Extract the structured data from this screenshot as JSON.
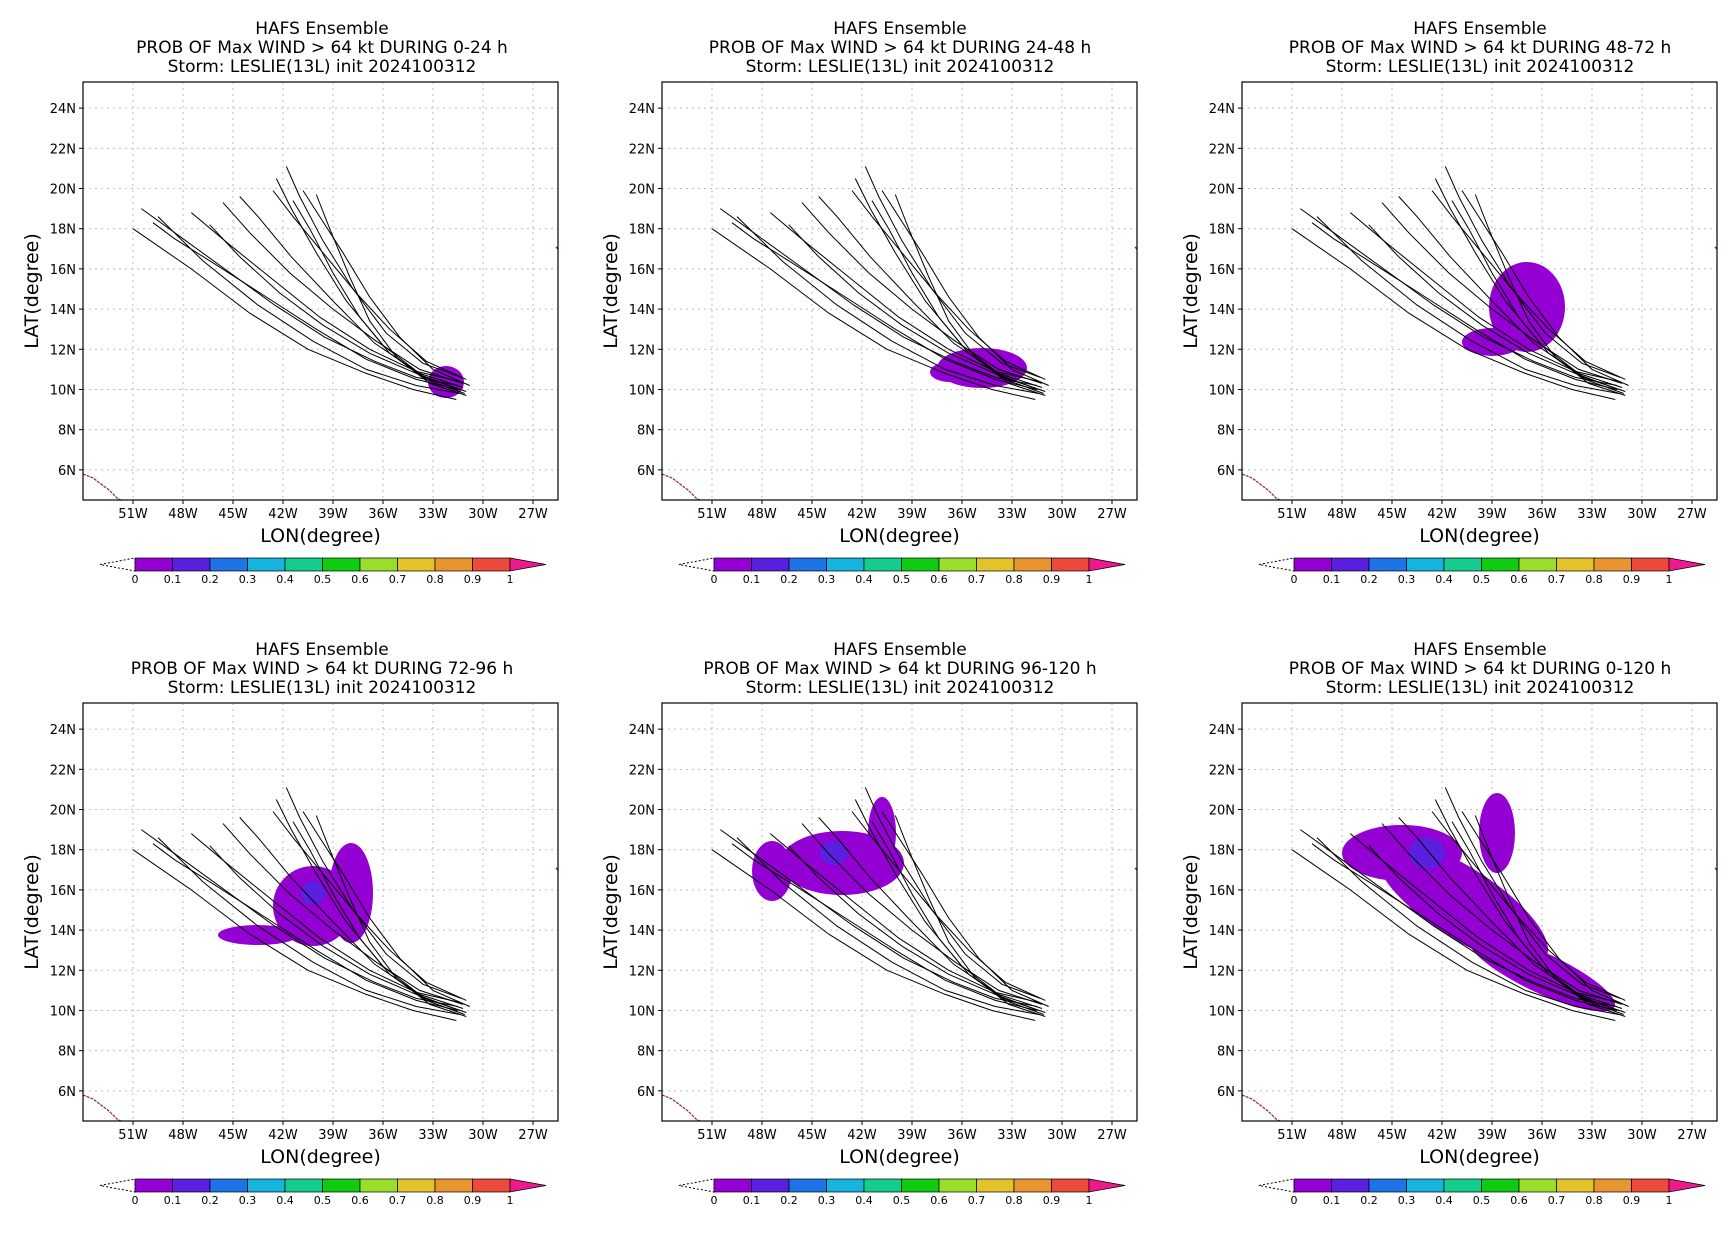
{
  "figure": {
    "title_line1": "HAFS Ensemble",
    "title_line3": "Storm: LESLIE(13L) init 2024100312",
    "xlabel": "LON(degree)",
    "ylabel": "LAT(degree)"
  },
  "axes": {
    "lon_ticks": [
      "51W",
      "48W",
      "45W",
      "42W",
      "39W",
      "36W",
      "33W",
      "30W",
      "27W"
    ],
    "lat_ticks": [
      "24N",
      "22N",
      "20N",
      "18N",
      "16N",
      "14N",
      "12N",
      "10N",
      "8N",
      "6N"
    ]
  },
  "colorbar": {
    "labels": [
      "0",
      "0.1",
      "0.2",
      "0.3",
      "0.4",
      "0.5",
      "0.6",
      "0.7",
      "0.8",
      "0.9",
      "1"
    ],
    "colors": [
      "#9400d3",
      "#5b1fe0",
      "#1e74e6",
      "#16b4dc",
      "#14cc8e",
      "#10cc10",
      "#9ade2c",
      "#e2c42a",
      "#e89430",
      "#ec4a3a",
      "#ec1a8c"
    ]
  },
  "colors": {
    "track": "#000000",
    "coast": "#8b2a2a",
    "grid": "#bdbdbd"
  },
  "panels": [
    {
      "title_line2": "PROB OF Max WIND > 64 kt DURING  0-24 h",
      "chart_data": {
        "type": "map",
        "xlim": [
          -54,
          -25.5
        ],
        "ylim": [
          4.5,
          25.3
        ],
        "probability_regions": [
          {
            "level": "0-0.1",
            "approx_center": [
              -32.5,
              10.5
            ]
          }
        ]
      }
    },
    {
      "title_line2": "PROB OF Max WIND > 64 kt DURING 24-48 h",
      "chart_data": {
        "type": "map",
        "xlim": [
          -54,
          -25.5
        ],
        "ylim": [
          4.5,
          25.3
        ],
        "probability_regions": [
          {
            "level": "0-0.1",
            "approx_center": [
              -35,
              11.3
            ]
          }
        ]
      }
    },
    {
      "title_line2": "PROB OF Max WIND > 64 kt DURING 48-72 h",
      "chart_data": {
        "type": "map",
        "xlim": [
          -54,
          -25.5
        ],
        "ylim": [
          4.5,
          25.3
        ],
        "probability_regions": [
          {
            "level": "0-0.1",
            "approx_center": [
              -38,
              13
            ]
          }
        ]
      }
    },
    {
      "title_line2": "PROB OF Max WIND > 64 kt DURING 72-96 h",
      "chart_data": {
        "type": "map",
        "xlim": [
          -54,
          -25.5
        ],
        "ylim": [
          4.5,
          25.3
        ],
        "probability_regions": [
          {
            "level": "0-0.2",
            "approx_center": [
              -41,
              15
            ]
          }
        ]
      }
    },
    {
      "title_line2": "PROB OF Max WIND > 64 kt DURING 96-120 h",
      "chart_data": {
        "type": "map",
        "xlim": [
          -54,
          -25.5
        ],
        "ylim": [
          4.5,
          25.3
        ],
        "probability_regions": [
          {
            "level": "0-0.2",
            "approx_center": [
              -44,
              17.5
            ]
          }
        ]
      }
    },
    {
      "title_line2": "PROB OF Max WIND > 64 kt DURING 0-120 h",
      "chart_data": {
        "type": "map",
        "xlim": [
          -54,
          -25.5
        ],
        "ylim": [
          4.5,
          25.3
        ],
        "probability_regions": [
          {
            "level": "0-0.2",
            "approx_center": [
              -40,
              15
            ]
          }
        ]
      }
    }
  ],
  "tracks": [
    [
      [
        -31.5,
        10.2
      ],
      [
        -34,
        10.6
      ],
      [
        -36.5,
        11.4
      ],
      [
        -39.5,
        12.6
      ],
      [
        -42.5,
        14.2
      ],
      [
        -45.5,
        16.0
      ],
      [
        -48.5,
        17.8
      ],
      [
        -50.5,
        19.0
      ]
    ],
    [
      [
        -31.5,
        10.0
      ],
      [
        -34,
        10.5
      ],
      [
        -37,
        11.5
      ],
      [
        -40,
        13.0
      ],
      [
        -43,
        14.6
      ],
      [
        -46,
        16.2
      ],
      [
        -48.5,
        17.5
      ],
      [
        -49.8,
        18.3
      ]
    ],
    [
      [
        -31.4,
        10.4
      ],
      [
        -34,
        10.9
      ],
      [
        -36.8,
        12.0
      ],
      [
        -39.8,
        13.6
      ],
      [
        -42.5,
        15.4
      ],
      [
        -45.2,
        17.2
      ],
      [
        -47.5,
        18.8
      ]
    ],
    [
      [
        -31.2,
        10.1
      ],
      [
        -33.8,
        10.8
      ],
      [
        -36.5,
        12.3
      ],
      [
        -39.0,
        14.4
      ],
      [
        -41.5,
        16.6
      ],
      [
        -43.5,
        18.6
      ],
      [
        -44.6,
        19.6
      ]
    ],
    [
      [
        -31.0,
        9.9
      ],
      [
        -33.5,
        10.6
      ],
      [
        -36.0,
        12.2
      ],
      [
        -38.2,
        14.4
      ],
      [
        -40.0,
        16.8
      ],
      [
        -41.5,
        19.0
      ],
      [
        -42.4,
        20.5
      ]
    ],
    [
      [
        -31.3,
        10.6
      ],
      [
        -33.6,
        11.3
      ],
      [
        -35.8,
        12.8
      ],
      [
        -37.8,
        15.0
      ],
      [
        -39.6,
        17.4
      ],
      [
        -41.0,
        19.6
      ],
      [
        -41.8,
        21.1
      ]
    ],
    [
      [
        -31.0,
        9.7
      ],
      [
        -33.2,
        10.3
      ],
      [
        -35.2,
        11.6
      ],
      [
        -36.8,
        13.4
      ],
      [
        -38.0,
        15.6
      ],
      [
        -39.2,
        18.0
      ],
      [
        -40.0,
        19.7
      ]
    ],
    [
      [
        -31.6,
        9.5
      ],
      [
        -34.2,
        10.0
      ],
      [
        -37.0,
        10.8
      ],
      [
        -40.5,
        12.0
      ],
      [
        -44.0,
        13.8
      ],
      [
        -47.5,
        16.0
      ],
      [
        -51.0,
        18.0
      ]
    ],
    [
      [
        -31.4,
        9.8
      ],
      [
        -34.0,
        10.2
      ],
      [
        -37.0,
        11.0
      ],
      [
        -40.2,
        12.4
      ],
      [
        -43.5,
        14.2
      ],
      [
        -46.8,
        16.4
      ],
      [
        -49.5,
        18.6
      ]
    ],
    [
      [
        -31.2,
        10.3
      ],
      [
        -33.8,
        11.0
      ],
      [
        -36.4,
        12.4
      ],
      [
        -39.0,
        14.0
      ],
      [
        -41.6,
        15.8
      ],
      [
        -44.0,
        17.8
      ],
      [
        -45.6,
        19.3
      ]
    ],
    [
      [
        -31.0,
        10.5
      ],
      [
        -33.4,
        11.4
      ],
      [
        -35.6,
        13.0
      ],
      [
        -37.6,
        14.8
      ],
      [
        -39.6,
        16.8
      ],
      [
        -41.4,
        18.6
      ],
      [
        -42.6,
        19.9
      ]
    ],
    [
      [
        -31.4,
        10.0
      ],
      [
        -34.0,
        10.8
      ],
      [
        -36.8,
        11.8
      ],
      [
        -39.6,
        13.2
      ],
      [
        -42.2,
        14.8
      ],
      [
        -44.6,
        16.6
      ],
      [
        -46.4,
        18.2
      ]
    ],
    [
      [
        -31.1,
        9.8
      ],
      [
        -33.4,
        10.5
      ],
      [
        -35.6,
        11.8
      ],
      [
        -37.4,
        13.6
      ],
      [
        -39.0,
        15.8
      ],
      [
        -40.4,
        18.0
      ],
      [
        -41.4,
        19.4
      ]
    ],
    [
      [
        -30.8,
        10.2
      ],
      [
        -33.0,
        11.0
      ],
      [
        -35.0,
        12.6
      ],
      [
        -36.8,
        14.6
      ],
      [
        -38.4,
        16.8
      ],
      [
        -39.8,
        18.6
      ],
      [
        -40.8,
        19.9
      ]
    ]
  ]
}
